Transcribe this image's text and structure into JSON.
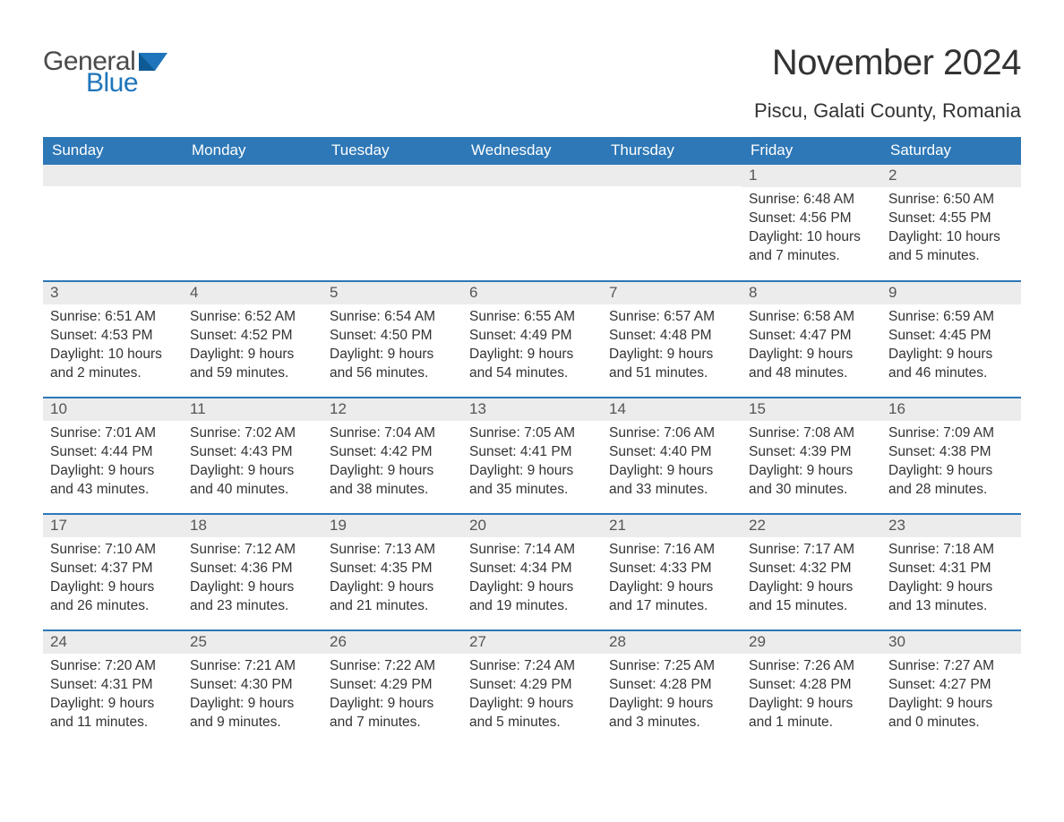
{
  "logo": {
    "word1": "General",
    "word2": "Blue",
    "text_color": "#4a4a4a",
    "accent_color": "#1f75bb"
  },
  "title": "November 2024",
  "location": "Piscu, Galati County, Romania",
  "header_bg": "#2e78b7",
  "header_text_color": "#ffffff",
  "daynum_bg": "#ececec",
  "row_sep_color": "#2e78b7",
  "body_text_color": "#333333",
  "fonts": {
    "title_pt": 40,
    "location_pt": 22,
    "header_pt": 17,
    "daynum_pt": 17,
    "body_pt": 15.5
  },
  "columns": [
    "Sunday",
    "Monday",
    "Tuesday",
    "Wednesday",
    "Thursday",
    "Friday",
    "Saturday"
  ],
  "weeks": [
    [
      null,
      null,
      null,
      null,
      null,
      {
        "n": "1",
        "sunrise": "Sunrise: 6:48 AM",
        "sunset": "Sunset: 4:56 PM",
        "daylight": "Daylight: 10 hours and 7 minutes."
      },
      {
        "n": "2",
        "sunrise": "Sunrise: 6:50 AM",
        "sunset": "Sunset: 4:55 PM",
        "daylight": "Daylight: 10 hours and 5 minutes."
      }
    ],
    [
      {
        "n": "3",
        "sunrise": "Sunrise: 6:51 AM",
        "sunset": "Sunset: 4:53 PM",
        "daylight": "Daylight: 10 hours and 2 minutes."
      },
      {
        "n": "4",
        "sunrise": "Sunrise: 6:52 AM",
        "sunset": "Sunset: 4:52 PM",
        "daylight": "Daylight: 9 hours and 59 minutes."
      },
      {
        "n": "5",
        "sunrise": "Sunrise: 6:54 AM",
        "sunset": "Sunset: 4:50 PM",
        "daylight": "Daylight: 9 hours and 56 minutes."
      },
      {
        "n": "6",
        "sunrise": "Sunrise: 6:55 AM",
        "sunset": "Sunset: 4:49 PM",
        "daylight": "Daylight: 9 hours and 54 minutes."
      },
      {
        "n": "7",
        "sunrise": "Sunrise: 6:57 AM",
        "sunset": "Sunset: 4:48 PM",
        "daylight": "Daylight: 9 hours and 51 minutes."
      },
      {
        "n": "8",
        "sunrise": "Sunrise: 6:58 AM",
        "sunset": "Sunset: 4:47 PM",
        "daylight": "Daylight: 9 hours and 48 minutes."
      },
      {
        "n": "9",
        "sunrise": "Sunrise: 6:59 AM",
        "sunset": "Sunset: 4:45 PM",
        "daylight": "Daylight: 9 hours and 46 minutes."
      }
    ],
    [
      {
        "n": "10",
        "sunrise": "Sunrise: 7:01 AM",
        "sunset": "Sunset: 4:44 PM",
        "daylight": "Daylight: 9 hours and 43 minutes."
      },
      {
        "n": "11",
        "sunrise": "Sunrise: 7:02 AM",
        "sunset": "Sunset: 4:43 PM",
        "daylight": "Daylight: 9 hours and 40 minutes."
      },
      {
        "n": "12",
        "sunrise": "Sunrise: 7:04 AM",
        "sunset": "Sunset: 4:42 PM",
        "daylight": "Daylight: 9 hours and 38 minutes."
      },
      {
        "n": "13",
        "sunrise": "Sunrise: 7:05 AM",
        "sunset": "Sunset: 4:41 PM",
        "daylight": "Daylight: 9 hours and 35 minutes."
      },
      {
        "n": "14",
        "sunrise": "Sunrise: 7:06 AM",
        "sunset": "Sunset: 4:40 PM",
        "daylight": "Daylight: 9 hours and 33 minutes."
      },
      {
        "n": "15",
        "sunrise": "Sunrise: 7:08 AM",
        "sunset": "Sunset: 4:39 PM",
        "daylight": "Daylight: 9 hours and 30 minutes."
      },
      {
        "n": "16",
        "sunrise": "Sunrise: 7:09 AM",
        "sunset": "Sunset: 4:38 PM",
        "daylight": "Daylight: 9 hours and 28 minutes."
      }
    ],
    [
      {
        "n": "17",
        "sunrise": "Sunrise: 7:10 AM",
        "sunset": "Sunset: 4:37 PM",
        "daylight": "Daylight: 9 hours and 26 minutes."
      },
      {
        "n": "18",
        "sunrise": "Sunrise: 7:12 AM",
        "sunset": "Sunset: 4:36 PM",
        "daylight": "Daylight: 9 hours and 23 minutes."
      },
      {
        "n": "19",
        "sunrise": "Sunrise: 7:13 AM",
        "sunset": "Sunset: 4:35 PM",
        "daylight": "Daylight: 9 hours and 21 minutes."
      },
      {
        "n": "20",
        "sunrise": "Sunrise: 7:14 AM",
        "sunset": "Sunset: 4:34 PM",
        "daylight": "Daylight: 9 hours and 19 minutes."
      },
      {
        "n": "21",
        "sunrise": "Sunrise: 7:16 AM",
        "sunset": "Sunset: 4:33 PM",
        "daylight": "Daylight: 9 hours and 17 minutes."
      },
      {
        "n": "22",
        "sunrise": "Sunrise: 7:17 AM",
        "sunset": "Sunset: 4:32 PM",
        "daylight": "Daylight: 9 hours and 15 minutes."
      },
      {
        "n": "23",
        "sunrise": "Sunrise: 7:18 AM",
        "sunset": "Sunset: 4:31 PM",
        "daylight": "Daylight: 9 hours and 13 minutes."
      }
    ],
    [
      {
        "n": "24",
        "sunrise": "Sunrise: 7:20 AM",
        "sunset": "Sunset: 4:31 PM",
        "daylight": "Daylight: 9 hours and 11 minutes."
      },
      {
        "n": "25",
        "sunrise": "Sunrise: 7:21 AM",
        "sunset": "Sunset: 4:30 PM",
        "daylight": "Daylight: 9 hours and 9 minutes."
      },
      {
        "n": "26",
        "sunrise": "Sunrise: 7:22 AM",
        "sunset": "Sunset: 4:29 PM",
        "daylight": "Daylight: 9 hours and 7 minutes."
      },
      {
        "n": "27",
        "sunrise": "Sunrise: 7:24 AM",
        "sunset": "Sunset: 4:29 PM",
        "daylight": "Daylight: 9 hours and 5 minutes."
      },
      {
        "n": "28",
        "sunrise": "Sunrise: 7:25 AM",
        "sunset": "Sunset: 4:28 PM",
        "daylight": "Daylight: 9 hours and 3 minutes."
      },
      {
        "n": "29",
        "sunrise": "Sunrise: 7:26 AM",
        "sunset": "Sunset: 4:28 PM",
        "daylight": "Daylight: 9 hours and 1 minute."
      },
      {
        "n": "30",
        "sunrise": "Sunrise: 7:27 AM",
        "sunset": "Sunset: 4:27 PM",
        "daylight": "Daylight: 9 hours and 0 minutes."
      }
    ]
  ]
}
